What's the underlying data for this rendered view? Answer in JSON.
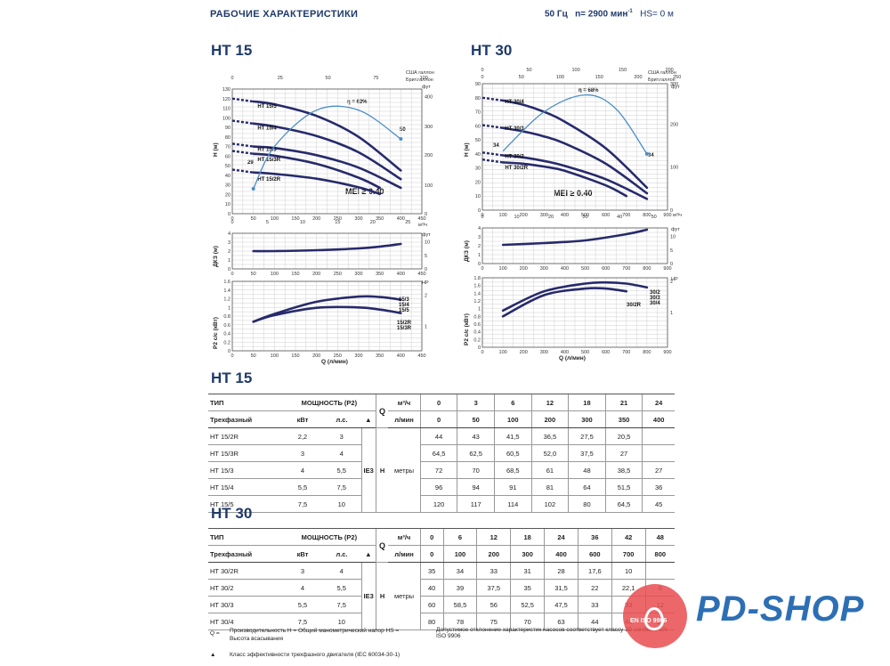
{
  "header": {
    "title": "РАБОЧИЕ ХАРАКТЕРИСТИКИ",
    "freq": "50 Гц",
    "speed": "n= 2900 мин",
    "speed_exp": "-1",
    "hs": "HS= 0 м"
  },
  "titles": {
    "ht15": "HT 15",
    "ht30": "HT 30",
    "table15": "HT 15",
    "table30": "HT 30"
  },
  "chart_labels": {
    "ht15": {
      "top_unit_usa": "США галлон",
      "top_unit_uk": "Брит.галлон",
      "h_axis": "H (м)",
      "ft": "фут",
      "m3h": "м³/ч",
      "npsh_axis": "ДКЗ (м)",
      "p2_axis": "P2 с/с (кВт)",
      "hp": "HP",
      "q_axis": "Q (л/мин)",
      "mei": "MEI ≥ 0.40",
      "eff": "η = 62%",
      "eff_l": "29",
      "eff_r": "50"
    },
    "ht30": {
      "top_unit_usa": "США галлон",
      "top_unit_uk": "Брит.галлон",
      "h_axis": "H (м)",
      "ft": "фут",
      "m3h": "м³/ч",
      "npsh_axis": "ДКЗ (м)",
      "p2_axis": "P2 с/с (кВт)",
      "hp": "HP",
      "q_axis": "Q (л/мин)",
      "mei": "MEI ≥ 0.40",
      "eff": "η = 68%",
      "eff_l": "34",
      "eff_r": "34"
    }
  },
  "chart_data": [
    {
      "type": "line",
      "name": "HT 15 H-Q",
      "xlabel": "Q (л/мин)",
      "ylabel": "H (м)",
      "xlim": [
        0,
        450
      ],
      "ylim": [
        0,
        130
      ],
      "series": [
        {
          "name": "HT 15/5",
          "x": [
            50,
            100,
            200,
            300,
            400
          ],
          "y": [
            117,
            114,
            102,
            80,
            45
          ]
        },
        {
          "name": "HT 15/4",
          "x": [
            50,
            100,
            200,
            300,
            400
          ],
          "y": [
            94,
            91,
            81,
            64,
            36
          ]
        },
        {
          "name": "HT 15/3",
          "x": [
            50,
            100,
            200,
            300,
            400
          ],
          "y": [
            70,
            68.5,
            61,
            48,
            27
          ]
        },
        {
          "name": "HT 15/3R",
          "x": [
            50,
            100,
            200,
            300,
            350
          ],
          "y": [
            62.5,
            60.5,
            52,
            37.5,
            27
          ]
        },
        {
          "name": "HT 15/2R",
          "x": [
            50,
            100,
            200,
            300,
            350
          ],
          "y": [
            43,
            41.5,
            36.5,
            27.5,
            20.5
          ]
        }
      ]
    },
    {
      "type": "line",
      "name": "HT 15 NPSH",
      "ylabel": "ДКЗ (м)",
      "x": [
        50,
        100,
        200,
        300,
        350,
        400
      ],
      "y": [
        2.0,
        2.0,
        2.1,
        2.3,
        2.5,
        2.8
      ]
    },
    {
      "type": "line",
      "name": "HT 15 P2",
      "ylabel": "P2 с/с (кВт)",
      "xlabel": "Q (л/мин)",
      "series": [
        {
          "name": "15/3 15/4 15/5",
          "x": [
            50,
            100,
            200,
            300,
            350,
            400
          ],
          "y": [
            0.67,
            0.85,
            1.13,
            1.25,
            1.24,
            1.18
          ]
        },
        {
          "name": "15/2R 15/3R",
          "x": [
            50,
            100,
            200,
            300,
            350,
            400
          ],
          "y": [
            0.67,
            0.82,
            0.99,
            1.0,
            0.95,
            0.87
          ]
        }
      ]
    },
    {
      "type": "line",
      "name": "HT 30 H-Q",
      "xlabel": "Q (л/мин)",
      "ylabel": "H (м)",
      "xlim": [
        0,
        900
      ],
      "ylim": [
        0,
        90
      ],
      "series": [
        {
          "name": "HT 30/4",
          "x": [
            100,
            200,
            300,
            400,
            600,
            800
          ],
          "y": [
            78,
            75,
            70,
            63,
            44,
            16
          ]
        },
        {
          "name": "HT 30/3",
          "x": [
            100,
            200,
            300,
            400,
            600,
            800
          ],
          "y": [
            58.5,
            56,
            52.5,
            47.5,
            33,
            12
          ]
        },
        {
          "name": "HT 30/2",
          "x": [
            100,
            200,
            300,
            400,
            600,
            700,
            800
          ],
          "y": [
            39,
            37.5,
            35,
            31.5,
            22,
            22.1,
            8
          ]
        },
        {
          "name": "HT 30/2R",
          "x": [
            100,
            200,
            300,
            400,
            600,
            700
          ],
          "y": [
            34,
            33,
            31,
            28,
            17.6,
            10
          ]
        }
      ]
    },
    {
      "type": "line",
      "name": "HT 30 NPSH",
      "ylabel": "ДКЗ (м)",
      "x": [
        100,
        300,
        500,
        700,
        800
      ],
      "y": [
        2.1,
        2.3,
        2.6,
        3.3,
        3.8
      ]
    },
    {
      "type": "line",
      "name": "HT 30 P2",
      "ylabel": "P2 с/с (кВт)",
      "xlabel": "Q (л/мин)",
      "series": [
        {
          "name": "30/2 30/3 30/4",
          "x": [
            100,
            300,
            500,
            600,
            700,
            800
          ],
          "y": [
            0.95,
            1.45,
            1.65,
            1.68,
            1.65,
            1.55
          ]
        },
        {
          "name": "30/2R",
          "x": [
            100,
            300,
            500,
            600,
            700
          ],
          "y": [
            0.8,
            1.35,
            1.52,
            1.52,
            1.45
          ]
        }
      ]
    }
  ],
  "table15": {
    "head1": {
      "tip": "ТИП",
      "power": "МОЩНОСТЬ (P2)",
      "q": "Q",
      "m3h": "м³/ч",
      "cols": [
        "0",
        "3",
        "6",
        "12",
        "18",
        "21",
        "24"
      ]
    },
    "head2": {
      "tip": "Трехфазный",
      "kw": "кВт",
      "hp": "л.с.",
      "tri": "▲",
      "lmin": "л/мин",
      "cols": [
        "0",
        "50",
        "100",
        "200",
        "300",
        "350",
        "400"
      ]
    },
    "ie": "IE3",
    "h": "H",
    "units": "метры",
    "rows": [
      {
        "name": "HT 15/2R",
        "kw": "2,2",
        "hp": "3",
        "v": [
          "44",
          "43",
          "41,5",
          "36,5",
          "27,5",
          "20,5",
          ""
        ]
      },
      {
        "name": "HT 15/3R",
        "kw": "3",
        "hp": "4",
        "v": [
          "64,5",
          "62,5",
          "60,5",
          "52,0",
          "37,5",
          "27",
          ""
        ]
      },
      {
        "name": "HT 15/3",
        "kw": "4",
        "hp": "5,5",
        "v": [
          "72",
          "70",
          "68,5",
          "61",
          "48",
          "38,5",
          "27"
        ]
      },
      {
        "name": "HT 15/4",
        "kw": "5,5",
        "hp": "7,5",
        "v": [
          "96",
          "94",
          "91",
          "81",
          "64",
          "51,5",
          "36"
        ]
      },
      {
        "name": "HT 15/5",
        "kw": "7,5",
        "hp": "10",
        "v": [
          "120",
          "117",
          "114",
          "102",
          "80",
          "64,5",
          "45"
        ]
      }
    ]
  },
  "table30": {
    "head1": {
      "tip": "ТИП",
      "power": "МОЩНОСТЬ (P2)",
      "q": "Q",
      "m3h": "м³/ч",
      "cols": [
        "0",
        "6",
        "12",
        "18",
        "24",
        "36",
        "42",
        "48"
      ]
    },
    "head2": {
      "tip": "Трехфазный",
      "kw": "кВт",
      "hp": "л.с.",
      "tri": "▲",
      "lmin": "л/мин",
      "cols": [
        "0",
        "100",
        "200",
        "300",
        "400",
        "600",
        "700",
        "800"
      ]
    },
    "ie": "IE3",
    "h": "H",
    "units": "метры",
    "rows": [
      {
        "name": "HT 30/2R",
        "kw": "3",
        "hp": "4",
        "v": [
          "35",
          "34",
          "33",
          "31",
          "28",
          "17,6",
          "10",
          ""
        ]
      },
      {
        "name": "HT 30/2",
        "kw": "4",
        "hp": "5,5",
        "v": [
          "40",
          "39",
          "37,5",
          "35",
          "31,5",
          "22",
          "22,1",
          "8"
        ]
      },
      {
        "name": "HT 30/3",
        "kw": "5,5",
        "hp": "7,5",
        "v": [
          "60",
          "58,5",
          "56",
          "52,5",
          "47,5",
          "33",
          "33",
          "12"
        ]
      },
      {
        "name": "HT 30/4",
        "kw": "7,5",
        "hp": "10",
        "v": [
          "80",
          "78",
          "75",
          "70",
          "63",
          "44",
          "44",
          "16"
        ]
      }
    ]
  },
  "footer": {
    "q_eq": "Q =",
    "note1": "Производительность H = Общий манометрический напор HS = Высота всасывания",
    "note2": "Допустимое отклонение характеристик насосов соответствует классу 3B согласно EN ISO 9906",
    "tri": "▲",
    "note3": "Класс эффективности трехфазного двигателя (IEC 60034-30-1)"
  },
  "logo": {
    "text": "PD-SHOP",
    "cap": "EN ISO 9906",
    "colors": {
      "circle": "#e84c50",
      "text": "#2d6fb5"
    }
  }
}
